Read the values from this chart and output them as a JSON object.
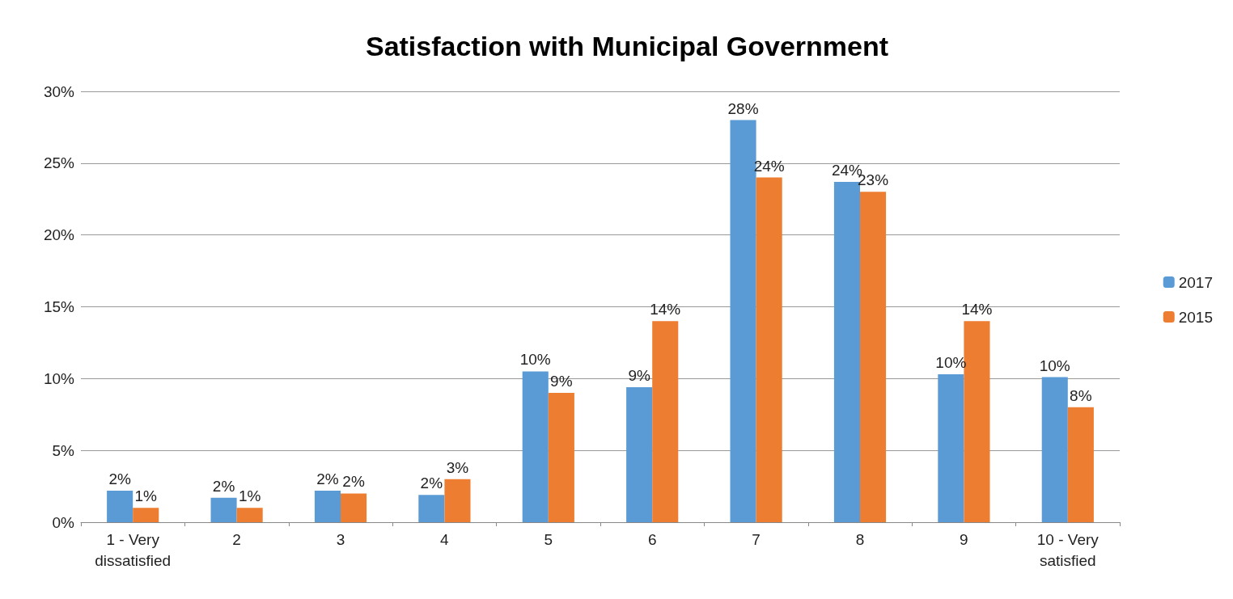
{
  "chart_data": {
    "type": "bar",
    "title": "Satisfaction with Municipal Government",
    "categories": [
      "1 - Very\ndissatisfied",
      "2",
      "3",
      "4",
      "5",
      "6",
      "7",
      "8",
      "9",
      "10 - Very\nsatisfied"
    ],
    "series": [
      {
        "name": "2017",
        "color": "#5b9bd5",
        "values": [
          2.2,
          1.7,
          2.2,
          1.9,
          10.5,
          9.4,
          28,
          23.7,
          10.3,
          10.1
        ],
        "value_labels": [
          "2%",
          "2%",
          "2%",
          "2%",
          "10%",
          "9%",
          "28%",
          "24%",
          "10%",
          "10%"
        ]
      },
      {
        "name": "2015",
        "color": "#ed7d31",
        "values": [
          1,
          1,
          2,
          3,
          9,
          14,
          24,
          23,
          14,
          8
        ],
        "value_labels": [
          "1%",
          "1%",
          "2%",
          "3%",
          "9%",
          "14%",
          "24%",
          "23%",
          "14%",
          "8%"
        ]
      }
    ],
    "ylim": [
      0,
      30
    ],
    "yticks": [
      {
        "value": 0,
        "label": "0%"
      },
      {
        "value": 5,
        "label": "5%"
      },
      {
        "value": 10,
        "label": "10%"
      },
      {
        "value": 15,
        "label": "15%"
      },
      {
        "value": 20,
        "label": "20%"
      },
      {
        "value": 25,
        "label": "25%"
      },
      {
        "value": 30,
        "label": "30%"
      }
    ],
    "grid": "y",
    "legend": "right"
  }
}
